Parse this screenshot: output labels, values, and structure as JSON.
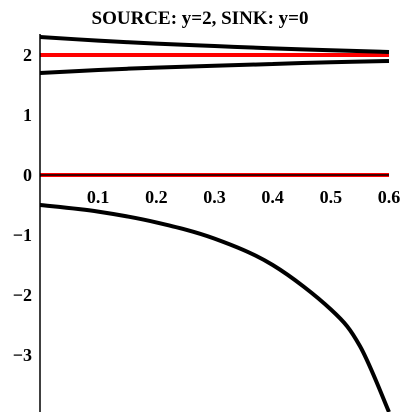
{
  "chart_data": {
    "type": "line",
    "title": "SOURCE: y=2, SINK: y=0",
    "xlabel": "",
    "ylabel": "",
    "xlim": [
      0,
      0.6
    ],
    "ylim": [
      -3.95,
      2.35
    ],
    "x_ticks": [
      "0.1",
      "0.2",
      "0.3",
      "0.4",
      "0.5",
      "0.6"
    ],
    "y_ticks": [
      "2",
      "1",
      "0",
      "−1",
      "−2",
      "−3"
    ],
    "x_tick_values": [
      0.1,
      0.2,
      0.3,
      0.4,
      0.5,
      0.6
    ],
    "y_tick_values": [
      2,
      1,
      0,
      -1,
      -2,
      -3
    ],
    "grid": false,
    "series": [
      {
        "color": "#ff0000",
        "x": [
          0,
          0.6
        ],
        "y": [
          2,
          2
        ]
      },
      {
        "color": "#ff0000",
        "x": [
          0,
          0.6
        ],
        "y": [
          0,
          0
        ]
      },
      {
        "color": "#000000",
        "x": [
          0,
          0.1,
          0.2,
          0.3,
          0.4,
          0.5,
          0.6
        ],
        "y": [
          2.3,
          2.24,
          2.19,
          2.15,
          2.11,
          2.08,
          2.05
        ]
      },
      {
        "color": "#000000",
        "x": [
          0,
          0.1,
          0.2,
          0.3,
          0.4,
          0.5,
          0.6
        ],
        "y": [
          1.7,
          1.75,
          1.79,
          1.82,
          1.85,
          1.88,
          1.9
        ]
      },
      {
        "color": "#000000",
        "x": [
          0,
          0.1,
          0.2,
          0.3,
          0.4,
          0.5,
          0.55,
          0.6
        ],
        "y": [
          -0.5,
          -0.61,
          -0.79,
          -1.06,
          -1.5,
          -2.24,
          -2.85,
          -3.95
        ]
      }
    ]
  }
}
